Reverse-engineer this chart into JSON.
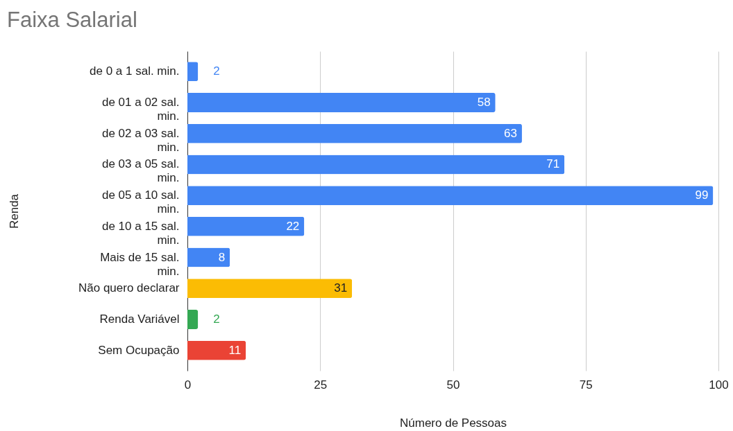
{
  "chart_data": {
    "type": "bar",
    "orientation": "horizontal",
    "title": "Faixa Salarial",
    "xlabel": "Número de Pessoas",
    "ylabel": "Renda",
    "categories": [
      "de 0 a 1 sal. min.",
      "de 01 a 02 sal. min.",
      "de 02 a 03 sal. min.",
      "de 03 a 05 sal. min.",
      "de 05 a 10 sal. min.",
      "de 10 a 15 sal. min.",
      "Mais de 15 sal. min.",
      "Não quero declarar",
      "Renda Variável",
      "Sem Ocupação"
    ],
    "values": [
      2,
      58,
      63,
      71,
      99,
      22,
      8,
      31,
      2,
      11
    ],
    "colors": [
      "#4285f4",
      "#4285f4",
      "#4285f4",
      "#4285f4",
      "#4285f4",
      "#4285f4",
      "#4285f4",
      "#fbbc04",
      "#34a853",
      "#ea4335"
    ],
    "xlim": [
      0,
      100
    ],
    "xticks": [
      0,
      25,
      50,
      75,
      100
    ],
    "grid": "x",
    "data_labels": true
  }
}
